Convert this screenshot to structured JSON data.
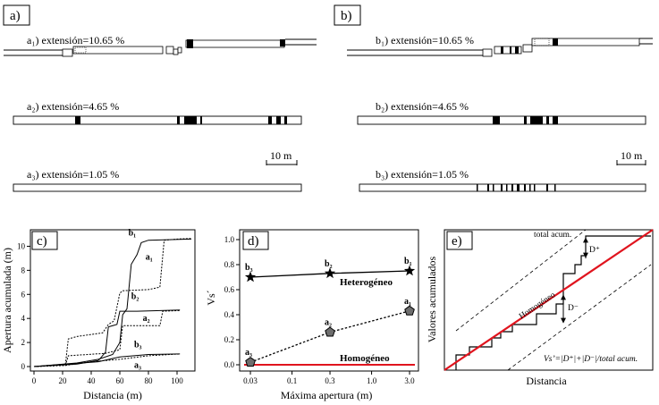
{
  "panels": {
    "a": {
      "label": "a)",
      "captions": {
        "c1": "a₁) extensión=10.65 %",
        "c2": "a₂) extensión=4.65 %",
        "c3": "a₃) extensión=1.05 %"
      }
    },
    "b": {
      "label": "b)",
      "captions": {
        "c1": "b₁) extensión=10.65 %",
        "c2": "b₂) extensión=4.65 %",
        "c3": "b₃) extensión=1.05 %"
      }
    },
    "scale_bar": "10 m",
    "c": {
      "label": "c)"
    },
    "d": {
      "label": "d)"
    },
    "e": {
      "label": "e)"
    }
  },
  "chart_data": [
    {
      "panel": "c",
      "type": "line",
      "xlabel": "Distancia (m)",
      "ylabel": "Apertura acumulada (m)",
      "xlim": [
        0,
        110
      ],
      "ylim": [
        0,
        11
      ],
      "xticks": [
        "0",
        "20",
        "40",
        "60",
        "80",
        "100"
      ],
      "yticks": [
        "0",
        "2",
        "4",
        "6",
        "8",
        "10"
      ],
      "series": [
        {
          "name": "b1",
          "style": "solid",
          "points": [
            [
              0,
              0
            ],
            [
              30,
              0.3
            ],
            [
              45,
              0.6
            ],
            [
              55,
              1.0
            ],
            [
              60,
              2.0
            ],
            [
              62,
              4.3
            ],
            [
              65,
              4.8
            ],
            [
              68,
              8.5
            ],
            [
              72,
              9.3
            ],
            [
              75,
              10.3
            ],
            [
              80,
              10.5
            ],
            [
              110,
              10.6
            ]
          ]
        },
        {
          "name": "a1",
          "style": "dashed",
          "points": [
            [
              0,
              0
            ],
            [
              22,
              0.2
            ],
            [
              24,
              2.3
            ],
            [
              30,
              2.5
            ],
            [
              48,
              2.8
            ],
            [
              52,
              3.5
            ],
            [
              56,
              3.8
            ],
            [
              60,
              6.1
            ],
            [
              62,
              6.3
            ],
            [
              80,
              6.4
            ],
            [
              88,
              6.6
            ],
            [
              91,
              10.5
            ],
            [
              100,
              10.6
            ],
            [
              110,
              10.65
            ]
          ]
        },
        {
          "name": "b2",
          "style": "solid",
          "points": [
            [
              0,
              0
            ],
            [
              30,
              0.2
            ],
            [
              45,
              0.5
            ],
            [
              50,
              1.2
            ],
            [
              52,
              3.3
            ],
            [
              58,
              3.5
            ],
            [
              60,
              4.6
            ],
            [
              72,
              4.6
            ],
            [
              102,
              4.7
            ]
          ]
        },
        {
          "name": "a2",
          "style": "dashed",
          "points": [
            [
              0,
              0
            ],
            [
              22,
              0.1
            ],
            [
              24,
              0.9
            ],
            [
              50,
              1.1
            ],
            [
              60,
              1.4
            ],
            [
              62,
              3.4
            ],
            [
              88,
              3.4
            ],
            [
              90,
              4.6
            ],
            [
              102,
              4.65
            ]
          ]
        },
        {
          "name": "b3",
          "style": "solid",
          "points": [
            [
              0,
              0
            ],
            [
              45,
              0.4
            ],
            [
              60,
              0.8
            ],
            [
              80,
              1.0
            ],
            [
              102,
              1.05
            ]
          ]
        },
        {
          "name": "a3",
          "style": "dashed",
          "points": [
            [
              0,
              0
            ],
            [
              22,
              0.1
            ],
            [
              40,
              0.4
            ],
            [
              60,
              0.6
            ],
            [
              80,
              0.9
            ],
            [
              102,
              1.05
            ]
          ]
        }
      ],
      "labels": {
        "b1": "b₁",
        "a1": "a₁",
        "b2": "b₂",
        "a2": "a₂",
        "b3": "b₃",
        "a3": "a₃"
      }
    },
    {
      "panel": "d",
      "type": "line",
      "xlabel": "Máxima apertura (m)",
      "ylabel": "Vs´",
      "xscale": "log",
      "xlim": [
        0.025,
        3.5
      ],
      "ylim": [
        0,
        1.05
      ],
      "xticks": [
        "0.03",
        "0.1",
        "0.3",
        "1.0",
        "3.0"
      ],
      "yticks": [
        "0.0",
        "0.2",
        "0.4",
        "0.6",
        "0.8",
        "1.0"
      ],
      "series": [
        {
          "name": "Heterogéneo",
          "style": "solid",
          "marker": "star",
          "x": [
            0.03,
            0.3,
            3.0
          ],
          "y": [
            0.7,
            0.73,
            0.75
          ],
          "point_labels": [
            "b₃",
            "b₂",
            "b₁"
          ]
        },
        {
          "name": "a",
          "style": "dotted",
          "marker": "pentagon",
          "x": [
            0.03,
            0.3,
            3.0
          ],
          "y": [
            0.02,
            0.26,
            0.43
          ],
          "point_labels": [
            "a₃",
            "a₂",
            "a₁"
          ]
        },
        {
          "name": "Homogéneo",
          "style": "solid",
          "color": "#e0141e",
          "x": [
            0.025,
            3.5
          ],
          "y": [
            0.0,
            0.0
          ]
        }
      ],
      "annotations": {
        "heterogeneo": "Heterogéneo",
        "homogeneo": "Homogéneo"
      }
    },
    {
      "panel": "e",
      "type": "line",
      "xlabel": "Distancia",
      "ylabel": "Valores acumulados",
      "annotations": {
        "total": "total acum.",
        "dplus": "D⁺",
        "dminus": "D⁻",
        "homogeneo": "Homogéneo",
        "formula": "Vs’=|D⁺|+|D⁻|/total acum."
      },
      "colors": {
        "homogeneous_line": "#e0141e"
      }
    }
  ]
}
